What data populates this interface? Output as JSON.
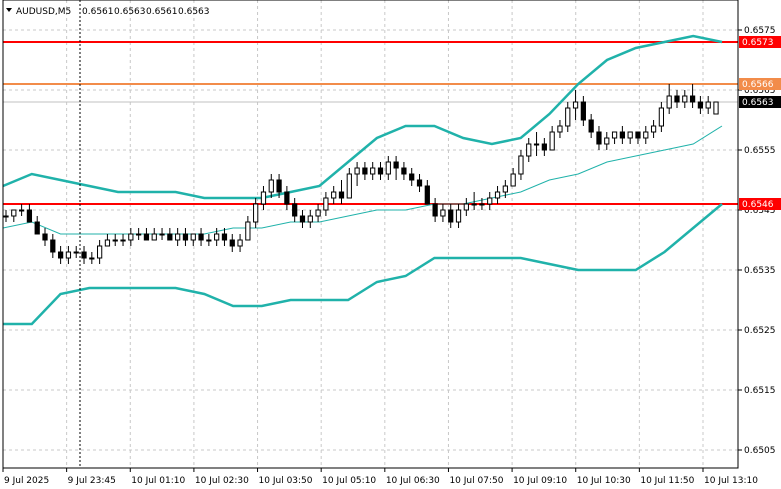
{
  "chart_data": {
    "type": "candlestick",
    "title": "AUDUSD,M5",
    "ohlc_header": [
      "0.6561",
      "0.6563",
      "0.6561",
      "0.6563"
    ],
    "y_ticks": [
      "0.6575",
      "0.6565",
      "0.6555",
      "0.6545",
      "0.6535",
      "0.6525",
      "0.6515",
      "0.6505"
    ],
    "ylim": [
      0.6502,
      0.658
    ],
    "x_ticks": [
      "9 Jul 2025",
      "9 Jul 23:45",
      "10 Jul 01:10",
      "10 Jul 02:30",
      "10 Jul 03:50",
      "10 Jul 05:10",
      "10 Jul 06:30",
      "10 Jul 07:50",
      "10 Jul 09:10",
      "10 Jul 10:30",
      "10 Jul 11:50",
      "10 Jul 13:10"
    ],
    "grid": true,
    "levels": [
      {
        "label": "0.6573",
        "value": 0.6573,
        "color": "#ff0000"
      },
      {
        "label": "0.6566",
        "value": 0.6566,
        "color": "#f28c4a"
      },
      {
        "label": "0.6546",
        "value": 0.6546,
        "color": "#ff0000"
      }
    ],
    "current_price": {
      "label": "0.6563",
      "value": 0.6563
    },
    "bollinger": {
      "color": "#20b2aa",
      "upper": [
        0.6549,
        0.6551,
        0.655,
        0.6549,
        0.6548,
        0.6548,
        0.6548,
        0.6547,
        0.6547,
        0.6547,
        0.6548,
        0.6549,
        0.6553,
        0.6557,
        0.6559,
        0.6559,
        0.6557,
        0.6556,
        0.6557,
        0.6561,
        0.6566,
        0.657,
        0.6572,
        0.6573,
        0.6574,
        0.6573
      ],
      "middle": [
        0.6542,
        0.6543,
        0.6541,
        0.6541,
        0.6541,
        0.6541,
        0.6541,
        0.6541,
        0.6542,
        0.6542,
        0.6543,
        0.6543,
        0.6544,
        0.6545,
        0.6545,
        0.6546,
        0.6546,
        0.6547,
        0.6548,
        0.655,
        0.6551,
        0.6553,
        0.6554,
        0.6555,
        0.6556,
        0.6559
      ],
      "lower": [
        0.6526,
        0.6526,
        0.6531,
        0.6532,
        0.6532,
        0.6532,
        0.6532,
        0.6531,
        0.6529,
        0.6529,
        0.653,
        0.653,
        0.653,
        0.6533,
        0.6534,
        0.6537,
        0.6537,
        0.6537,
        0.6537,
        0.6536,
        0.6535,
        0.6535,
        0.6535,
        0.6538,
        0.6542,
        0.6546
      ]
    },
    "candles": [
      [
        0.6544,
        0.6545,
        0.6543,
        0.6544
      ],
      [
        0.6544,
        0.6545,
        0.6543,
        0.6545
      ],
      [
        0.6545,
        0.6546,
        0.6544,
        0.6545
      ],
      [
        0.6545,
        0.6546,
        0.6543,
        0.6543
      ],
      [
        0.6543,
        0.6544,
        0.6541,
        0.6541
      ],
      [
        0.6541,
        0.6542,
        0.6539,
        0.654
      ],
      [
        0.654,
        0.6541,
        0.6537,
        0.6538
      ],
      [
        0.6538,
        0.6539,
        0.6536,
        0.6537
      ],
      [
        0.6537,
        0.6539,
        0.6536,
        0.6538
      ],
      [
        0.6538,
        0.6539,
        0.6537,
        0.6538
      ],
      [
        0.6538,
        0.6539,
        0.6536,
        0.6537
      ],
      [
        0.6537,
        0.6538,
        0.6536,
        0.6537
      ],
      [
        0.6537,
        0.654,
        0.6536,
        0.6539
      ],
      [
        0.6539,
        0.6541,
        0.6539,
        0.654
      ],
      [
        0.654,
        0.6541,
        0.6539,
        0.654
      ],
      [
        0.654,
        0.6541,
        0.6539,
        0.654
      ],
      [
        0.654,
        0.6542,
        0.6539,
        0.6541
      ],
      [
        0.6541,
        0.6542,
        0.654,
        0.6541
      ],
      [
        0.6541,
        0.6542,
        0.654,
        0.654
      ],
      [
        0.654,
        0.6542,
        0.654,
        0.6541
      ],
      [
        0.6541,
        0.6542,
        0.654,
        0.6541
      ],
      [
        0.6541,
        0.6542,
        0.654,
        0.654
      ],
      [
        0.654,
        0.6542,
        0.6539,
        0.6541
      ],
      [
        0.6541,
        0.6542,
        0.6539,
        0.654
      ],
      [
        0.654,
        0.6541,
        0.6539,
        0.6541
      ],
      [
        0.6541,
        0.6542,
        0.6539,
        0.654
      ],
      [
        0.654,
        0.6541,
        0.6539,
        0.654
      ],
      [
        0.654,
        0.6542,
        0.6539,
        0.6541
      ],
      [
        0.6541,
        0.6542,
        0.6539,
        0.654
      ],
      [
        0.654,
        0.6541,
        0.6538,
        0.6539
      ],
      [
        0.6539,
        0.6541,
        0.6538,
        0.654
      ],
      [
        0.654,
        0.6544,
        0.654,
        0.6543
      ],
      [
        0.6543,
        0.6547,
        0.6542,
        0.6546
      ],
      [
        0.6546,
        0.6549,
        0.6545,
        0.6548
      ],
      [
        0.6548,
        0.6551,
        0.6547,
        0.655
      ],
      [
        0.655,
        0.6551,
        0.6547,
        0.6548
      ],
      [
        0.6548,
        0.6549,
        0.6545,
        0.6546
      ],
      [
        0.6546,
        0.6547,
        0.6543,
        0.6544
      ],
      [
        0.6544,
        0.6545,
        0.6542,
        0.6543
      ],
      [
        0.6543,
        0.6545,
        0.6542,
        0.6544
      ],
      [
        0.6544,
        0.6546,
        0.6543,
        0.6545
      ],
      [
        0.6545,
        0.6548,
        0.6544,
        0.6547
      ],
      [
        0.6547,
        0.6549,
        0.6546,
        0.6548
      ],
      [
        0.6548,
        0.655,
        0.6546,
        0.6547
      ],
      [
        0.6547,
        0.6552,
        0.6547,
        0.6551
      ],
      [
        0.6551,
        0.6553,
        0.6549,
        0.6552
      ],
      [
        0.6552,
        0.6553,
        0.655,
        0.6551
      ],
      [
        0.6551,
        0.6553,
        0.655,
        0.6552
      ],
      [
        0.6552,
        0.6553,
        0.655,
        0.6551
      ],
      [
        0.6551,
        0.6554,
        0.655,
        0.6553
      ],
      [
        0.6553,
        0.6554,
        0.655,
        0.6552
      ],
      [
        0.6552,
        0.6553,
        0.655,
        0.6551
      ],
      [
        0.6551,
        0.6552,
        0.6549,
        0.655
      ],
      [
        0.655,
        0.6551,
        0.6548,
        0.6549
      ],
      [
        0.6549,
        0.655,
        0.6546,
        0.6546
      ],
      [
        0.6546,
        0.6547,
        0.6543,
        0.6544
      ],
      [
        0.6544,
        0.6546,
        0.6543,
        0.6545
      ],
      [
        0.6545,
        0.6546,
        0.6542,
        0.6543
      ],
      [
        0.6543,
        0.6546,
        0.6542,
        0.6545
      ],
      [
        0.6545,
        0.6547,
        0.6544,
        0.6546
      ],
      [
        0.6546,
        0.6548,
        0.6545,
        0.6546
      ],
      [
        0.6546,
        0.6547,
        0.6545,
        0.6546
      ],
      [
        0.6546,
        0.6548,
        0.6545,
        0.6547
      ],
      [
        0.6547,
        0.6549,
        0.6546,
        0.6548
      ],
      [
        0.6548,
        0.655,
        0.6547,
        0.6549
      ],
      [
        0.6549,
        0.6552,
        0.6549,
        0.6551
      ],
      [
        0.6551,
        0.6555,
        0.655,
        0.6554
      ],
      [
        0.6554,
        0.6557,
        0.6553,
        0.6556
      ],
      [
        0.6556,
        0.6558,
        0.6554,
        0.6556
      ],
      [
        0.6556,
        0.6557,
        0.6554,
        0.6555
      ],
      [
        0.6555,
        0.6559,
        0.6555,
        0.6558
      ],
      [
        0.6558,
        0.656,
        0.6557,
        0.6559
      ],
      [
        0.6559,
        0.6563,
        0.6558,
        0.6562
      ],
      [
        0.6562,
        0.6565,
        0.656,
        0.6563
      ],
      [
        0.6563,
        0.6564,
        0.6559,
        0.656
      ],
      [
        0.656,
        0.6561,
        0.6557,
        0.6558
      ],
      [
        0.6558,
        0.6559,
        0.6555,
        0.6556
      ],
      [
        0.6556,
        0.6558,
        0.6555,
        0.6557
      ],
      [
        0.6557,
        0.6558,
        0.6556,
        0.6558
      ],
      [
        0.6558,
        0.6559,
        0.6556,
        0.6557
      ],
      [
        0.6557,
        0.6558,
        0.6556,
        0.6558
      ],
      [
        0.6558,
        0.6558,
        0.6556,
        0.6557
      ],
      [
        0.6557,
        0.6559,
        0.6556,
        0.6558
      ],
      [
        0.6558,
        0.656,
        0.6557,
        0.6559
      ],
      [
        0.6559,
        0.6563,
        0.6558,
        0.6562
      ],
      [
        0.6562,
        0.6566,
        0.6561,
        0.6564
      ],
      [
        0.6564,
        0.6565,
        0.6562,
        0.6563
      ],
      [
        0.6563,
        0.6565,
        0.6562,
        0.6564
      ],
      [
        0.6564,
        0.6566,
        0.6562,
        0.6563
      ],
      [
        0.6563,
        0.6564,
        0.6561,
        0.6562
      ],
      [
        0.6562,
        0.6564,
        0.6561,
        0.6563
      ],
      [
        0.6561,
        0.6563,
        0.6561,
        0.6563
      ]
    ]
  }
}
